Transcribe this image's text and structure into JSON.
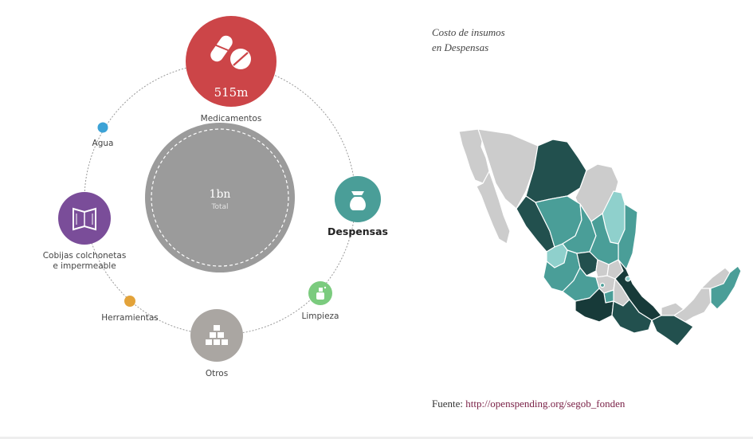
{
  "chart_data": [
    {
      "type": "bubble",
      "center": {
        "value_label": "1bn",
        "sub_label": "Total"
      },
      "nodes": [
        {
          "id": "medicamentos",
          "label": "Medicamentos",
          "value_label": "515m",
          "icon": "pills-icon",
          "color": "#cc4548"
        },
        {
          "id": "despensas",
          "label": "Despensas",
          "icon": "sack-icon",
          "color": "#4a9e98",
          "selected": true
        },
        {
          "id": "limpieza",
          "label": "Limpieza",
          "icon": "spray-icon",
          "color": "#7bcb7e"
        },
        {
          "id": "otros",
          "label": "Otros",
          "icon": "boxes-icon",
          "color": "#aaa6a2"
        },
        {
          "id": "herramientas",
          "label": "Herramientas",
          "icon": "",
          "color": "#e3a33a"
        },
        {
          "id": "cobijas",
          "label_lines": [
            "Cobijas colchonetas",
            "e impermeable"
          ],
          "icon": "book-icon",
          "color": "#7a4d99"
        },
        {
          "id": "agua",
          "label": "Agua",
          "icon": "",
          "color": "#3ca2d6"
        }
      ]
    },
    {
      "type": "choropleth",
      "title_lines": [
        "Costo de insumos",
        "en Despensas"
      ],
      "region": "Mexico",
      "colors": {
        "none": "#cccccc",
        "low": "#8fd0cc",
        "mid": "#4a9e98",
        "high": "#22504e",
        "highest": "#173a39"
      }
    }
  ],
  "source": {
    "prefix": "Fuente:",
    "link": "http://openspending.org/segob_fonden"
  }
}
